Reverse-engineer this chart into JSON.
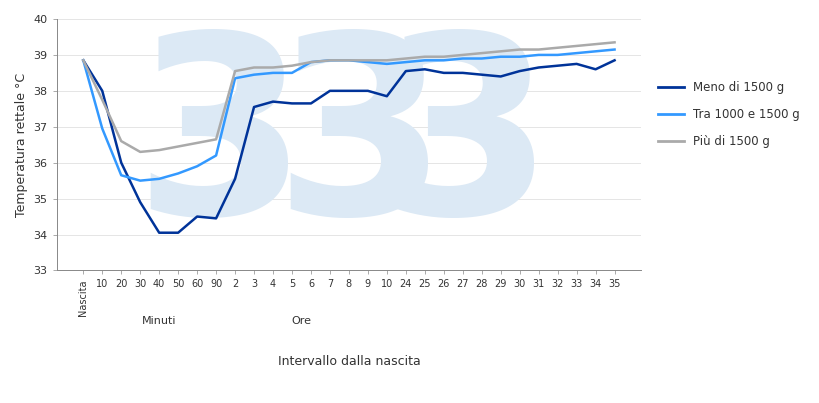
{
  "title": "",
  "xlabel": "Intervallo dalla nascita",
  "ylabel": "Temperatura rettale °C",
  "ylim": [
    33,
    40
  ],
  "yticks": [
    33,
    34,
    35,
    36,
    37,
    38,
    39,
    40
  ],
  "xtick_labels": [
    "Nascita",
    "10",
    "20",
    "30",
    "40",
    "50",
    "60",
    "90",
    "2",
    "3",
    "4",
    "5",
    "6",
    "7",
    "8",
    "9",
    "10",
    "24",
    "25",
    "26",
    "27",
    "28",
    "29",
    "30",
    "31",
    "32",
    "33",
    "34",
    "35"
  ],
  "minuti_label": "Minuti",
  "ore_label": "Ore",
  "bg_color": "#ffffff",
  "grid_color": "#e0e0e0",
  "watermark_color": "#dce9f5",
  "line_dark_blue": "#003399",
  "line_light_blue": "#3399ff",
  "line_gray": "#aaaaaa",
  "legend_labels": [
    "Meno di 1500 g",
    "Tra 1000 e 1500 g",
    "Più di 1500 g"
  ],
  "series_dark": [
    38.85,
    38.0,
    36.0,
    34.9,
    34.05,
    34.05,
    34.5,
    34.45,
    35.55,
    37.55,
    37.7,
    37.65,
    37.65,
    38.0,
    38.0,
    38.0,
    37.85,
    38.55,
    38.6,
    38.5,
    38.5,
    38.45,
    38.4,
    38.55,
    38.65,
    38.7,
    38.75,
    38.6,
    38.85
  ],
  "series_light": [
    38.85,
    36.95,
    35.65,
    35.5,
    35.55,
    35.7,
    35.9,
    36.2,
    38.35,
    38.45,
    38.5,
    38.5,
    38.8,
    38.85,
    38.85,
    38.8,
    38.75,
    38.8,
    38.85,
    38.85,
    38.9,
    38.9,
    38.95,
    38.95,
    39.0,
    39.0,
    39.05,
    39.1,
    39.15
  ],
  "series_gray": [
    38.85,
    37.75,
    36.6,
    36.3,
    36.35,
    36.45,
    36.55,
    36.65,
    38.55,
    38.65,
    38.65,
    38.7,
    38.8,
    38.85,
    38.85,
    38.85,
    38.85,
    38.9,
    38.95,
    38.95,
    39.0,
    39.05,
    39.1,
    39.15,
    39.15,
    39.2,
    39.25,
    39.3,
    39.35
  ]
}
